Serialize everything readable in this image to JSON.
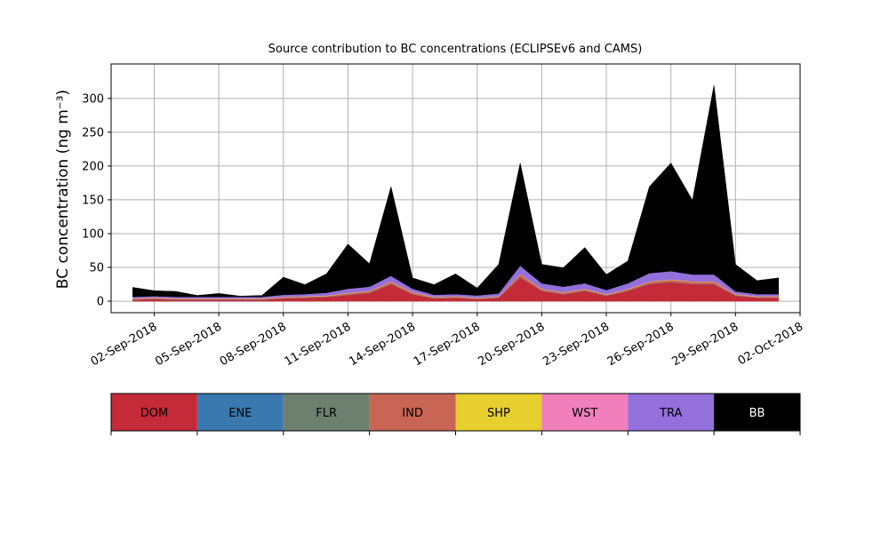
{
  "chart_data": {
    "type": "stacked-area",
    "title": "Source contribution to BC concentrations (ECLIPSEv6 and CAMS)",
    "y_label": "BC concentration (ng m⁻³)",
    "x": [
      "2018-09-01",
      "2018-09-02",
      "2018-09-03",
      "2018-09-04",
      "2018-09-05",
      "2018-09-06",
      "2018-09-07",
      "2018-09-08",
      "2018-09-09",
      "2018-09-10",
      "2018-09-11",
      "2018-09-12",
      "2018-09-13",
      "2018-09-14",
      "2018-09-15",
      "2018-09-16",
      "2018-09-17",
      "2018-09-18",
      "2018-09-19",
      "2018-09-20",
      "2018-09-21",
      "2018-09-22",
      "2018-09-23",
      "2018-09-24",
      "2018-09-25",
      "2018-09-26",
      "2018-09-27",
      "2018-09-28",
      "2018-09-29",
      "2018-09-30",
      "2018-10-01"
    ],
    "series": [
      {
        "name": "DOM",
        "color": "#c52a38",
        "values": [
          2,
          3,
          2,
          2,
          2,
          2,
          2,
          4,
          5,
          6,
          9,
          12,
          25,
          10,
          4,
          5,
          3,
          5,
          35,
          15,
          10,
          15,
          8,
          15,
          25,
          28,
          25,
          25,
          8,
          5,
          5
        ]
      },
      {
        "name": "ENE",
        "color": "#3a78b0",
        "values": [
          0.3,
          0.3,
          0.3,
          0.3,
          0.3,
          0.3,
          0.3,
          0.3,
          0.3,
          0.3,
          0.3,
          0.3,
          0.3,
          0.3,
          0.3,
          0.3,
          0.3,
          0.3,
          0.3,
          0.3,
          0.3,
          0.3,
          0.3,
          0.3,
          0.3,
          0.3,
          0.3,
          0.3,
          0.3,
          0.3,
          0.3
        ]
      },
      {
        "name": "FLR",
        "color": "#6d7f6e",
        "values": [
          0.2,
          0.2,
          0.2,
          0.2,
          0.2,
          0.2,
          0.2,
          0.2,
          0.2,
          0.2,
          0.2,
          0.2,
          0.2,
          0.2,
          0.2,
          0.2,
          0.2,
          0.2,
          0.2,
          0.2,
          0.2,
          0.2,
          0.2,
          0.2,
          0.2,
          0.2,
          0.2,
          0.2,
          0.2,
          0.2,
          0.2
        ]
      },
      {
        "name": "IND",
        "color": "#c96554",
        "values": [
          1,
          1,
          1,
          1,
          1,
          1,
          1,
          1,
          1,
          1,
          2,
          2,
          3,
          2,
          1,
          1,
          1,
          1,
          4,
          2,
          2,
          2,
          1,
          2,
          3,
          3,
          3,
          3,
          1,
          1,
          1
        ]
      },
      {
        "name": "SHP",
        "color": "#e6cf2e",
        "values": [
          0.5,
          0.5,
          0.5,
          0.5,
          0.5,
          0.5,
          0.5,
          0.5,
          0.5,
          0.5,
          0.5,
          0.5,
          0.5,
          0.5,
          0.5,
          0.5,
          0.5,
          0.5,
          0.5,
          0.5,
          0.5,
          0.5,
          0.5,
          0.5,
          0.5,
          0.5,
          0.5,
          0.5,
          0.5,
          0.5,
          0.5
        ]
      },
      {
        "name": "WST",
        "color": "#f07fbc",
        "values": [
          0.5,
          0.5,
          0.5,
          0.5,
          0.5,
          0.5,
          0.5,
          0.5,
          0.5,
          0.5,
          0.5,
          0.5,
          0.5,
          0.5,
          0.5,
          0.5,
          0.5,
          0.5,
          0.5,
          0.5,
          0.5,
          0.5,
          0.5,
          0.5,
          0.5,
          0.5,
          0.5,
          0.5,
          0.5,
          0.5,
          0.5
        ]
      },
      {
        "name": "TRA",
        "color": "#9370db",
        "values": [
          2,
          2,
          2,
          2,
          2,
          2,
          2,
          3,
          3,
          4,
          6,
          6,
          8,
          5,
          3,
          3,
          3,
          4,
          12,
          8,
          8,
          8,
          6,
          8,
          12,
          12,
          10,
          10,
          4,
          3,
          3
        ]
      },
      {
        "name": "BB",
        "color": "#000000",
        "values": [
          14,
          8,
          8,
          2,
          5,
          1,
          2,
          26,
          14,
          28,
          66,
          34,
          132,
          16,
          15,
          30,
          11,
          43,
          152,
          28,
          28,
          53,
          23,
          33,
          128,
          160,
          110,
          280,
          40,
          20,
          24
        ]
      }
    ],
    "xlim": [
      "2018-08-31",
      "2018-10-02"
    ],
    "xticks": [
      {
        "value": "2018-09-02",
        "label": "02-Sep-2018"
      },
      {
        "value": "2018-09-05",
        "label": "05-Sep-2018"
      },
      {
        "value": "2018-09-08",
        "label": "08-Sep-2018"
      },
      {
        "value": "2018-09-11",
        "label": "11-Sep-2018"
      },
      {
        "value": "2018-09-14",
        "label": "14-Sep-2018"
      },
      {
        "value": "2018-09-17",
        "label": "17-Sep-2018"
      },
      {
        "value": "2018-09-20",
        "label": "20-Sep-2018"
      },
      {
        "value": "2018-09-23",
        "label": "23-Sep-2018"
      },
      {
        "value": "2018-09-26",
        "label": "26-Sep-2018"
      },
      {
        "value": "2018-09-29",
        "label": "29-Sep-2018"
      },
      {
        "value": "2018-10-02",
        "label": "02-Oct-2018"
      }
    ],
    "ylim": [
      -17,
      351
    ],
    "yticks": [
      0,
      50,
      100,
      150,
      200,
      250,
      300
    ],
    "grid": true
  }
}
